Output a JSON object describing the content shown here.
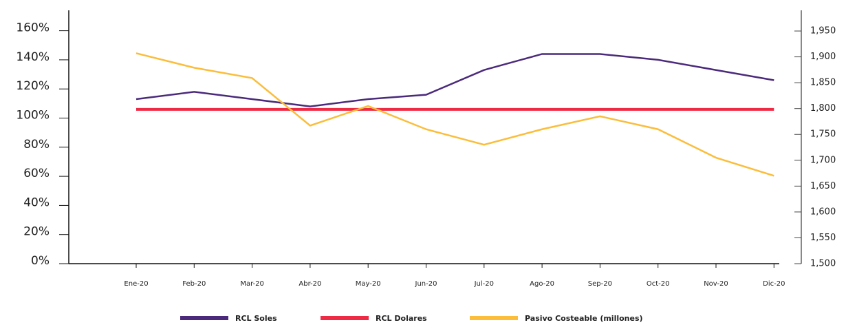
{
  "chart_data": {
    "type": "line",
    "categories": [
      "Ene-20",
      "Feb-20",
      "Mar-20",
      "Abr-20",
      "May-20",
      "Jun-20",
      "Jul-20",
      "Ago-20",
      "Sep-20",
      "Oct-20",
      "Nov-20",
      "Dic-20"
    ],
    "series": [
      {
        "name": "RCL Soles",
        "color": "#4b2a7b",
        "values": [
          113,
          118,
          113,
          108,
          113,
          116,
          133,
          144,
          144,
          140,
          133,
          126
        ]
      },
      {
        "name": "RCL Dolares",
        "color": "#ee2a45",
        "values": [
          106,
          106,
          106,
          106,
          106,
          106,
          106,
          106,
          106,
          106,
          106,
          106
        ]
      },
      {
        "name": "Pasivo Costeable (millones)",
        "color": "#fbbd3a",
        "axis": "y2",
        "values": [
          1907,
          1879,
          1859,
          1767,
          1805,
          1760,
          1730,
          1760,
          1785,
          1760,
          1705,
          1670
        ]
      }
    ],
    "ylim": [
      0,
      174
    ],
    "yticks": [
      {
        "value": 0,
        "label": "0%"
      },
      {
        "value": 20,
        "label": "20%"
      },
      {
        "value": 40,
        "label": "40%"
      },
      {
        "value": 60,
        "label": "60%"
      },
      {
        "value": 80,
        "label": "80%"
      },
      {
        "value": 100,
        "label": "100%"
      },
      {
        "value": 120,
        "label": "120%"
      },
      {
        "value": 140,
        "label": "140%"
      },
      {
        "value": 160,
        "label": "160%"
      }
    ],
    "y2lim": [
      1500,
      1990
    ],
    "y2ticks": [
      {
        "value": 1500,
        "label": "1,500"
      },
      {
        "value": 1550,
        "label": "1,550"
      },
      {
        "value": 1600,
        "label": "1,600"
      },
      {
        "value": 1650,
        "label": "1,650"
      },
      {
        "value": 1700,
        "label": "1,700"
      },
      {
        "value": 1750,
        "label": "1,750"
      },
      {
        "value": 1800,
        "label": "1,800"
      },
      {
        "value": 1850,
        "label": "1,850"
      },
      {
        "value": 1900,
        "label": "1,900"
      },
      {
        "value": 1950,
        "label": "1,950"
      }
    ],
    "legend": "bottom"
  }
}
